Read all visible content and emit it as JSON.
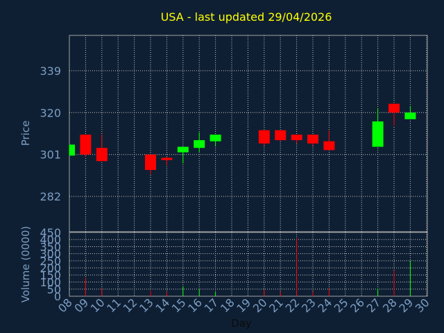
{
  "chart_data": {
    "type": "candlestick",
    "title": "USA - last updated 29/04/2026",
    "xlabel": "Day",
    "price_ylabel": "Price",
    "volume_ylabel": "Volume (0000)",
    "price_ticks": [
      "339",
      "320",
      "301",
      "282"
    ],
    "price_tick_values": [
      339,
      320,
      301,
      282
    ],
    "price_ylim": [
      266,
      355
    ],
    "volume_ticks": [
      "0",
      "50",
      "100",
      "150",
      "200",
      "250",
      "300",
      "350",
      "400",
      "450"
    ],
    "volume_ylim": [
      0,
      450
    ],
    "day_labels": [
      "08",
      "09",
      "10",
      "11",
      "12",
      "13",
      "14",
      "15",
      "16",
      "17",
      "18",
      "19",
      "20",
      "21",
      "22",
      "23",
      "24",
      "25",
      "26",
      "27",
      "28",
      "29",
      "30"
    ],
    "up_color": "#00ff00",
    "down_color": "#ff0000",
    "candles": [
      {
        "day": "08",
        "open": 300.5,
        "close": 305.5,
        "high": 305.5,
        "low": 300.5,
        "volume": 0
      },
      {
        "day": "09",
        "open": 310,
        "close": 301,
        "high": 310,
        "low": 300,
        "volume": 130
      },
      {
        "day": "10",
        "open": 304,
        "close": 298,
        "high": 310,
        "low": 298,
        "volume": 55
      },
      {
        "day": "13",
        "open": 301,
        "close": 294,
        "high": 301,
        "low": 292,
        "volume": 40
      },
      {
        "day": "14",
        "open": 299.5,
        "close": 298.5,
        "high": 300,
        "low": 296,
        "volume": 30
      },
      {
        "day": "15",
        "open": 302,
        "close": 304.5,
        "high": 304.5,
        "low": 297,
        "volume": 70
      },
      {
        "day": "16",
        "open": 304,
        "close": 307.5,
        "high": 311,
        "low": 302,
        "volume": 50
      },
      {
        "day": "17",
        "open": 307,
        "close": 310,
        "high": 310,
        "low": 305,
        "volume": 30
      },
      {
        "day": "20",
        "open": 312,
        "close": 306,
        "high": 312,
        "low": 305,
        "volume": 45
      },
      {
        "day": "21",
        "open": 312,
        "close": 307.5,
        "high": 312,
        "low": 307,
        "volume": 35
      },
      {
        "day": "22",
        "open": 310,
        "close": 307.5,
        "high": 310,
        "low": 306,
        "volume": 410
      },
      {
        "day": "23",
        "open": 310,
        "close": 306,
        "high": 310,
        "low": 305,
        "volume": 35
      },
      {
        "day": "24",
        "open": 307,
        "close": 303,
        "high": 312,
        "low": 303,
        "volume": 55
      },
      {
        "day": "27",
        "open": 304.5,
        "close": 316,
        "high": 322,
        "low": 304.5,
        "volume": 55
      },
      {
        "day": "28",
        "open": 324,
        "close": 320,
        "high": 324,
        "low": 314,
        "volume": 180
      },
      {
        "day": "29",
        "open": 317,
        "close": 320,
        "high": 323,
        "low": 317,
        "volume": 250
      }
    ]
  }
}
